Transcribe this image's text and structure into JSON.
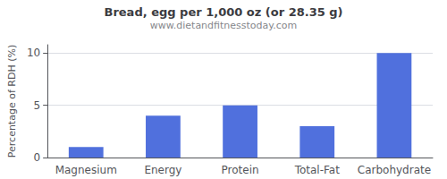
{
  "chart_data": {
    "type": "bar",
    "title": "Bread, egg per 1,000 oz (or 28.35 g)",
    "subtitle": "www.dietandfitnesstoday.com",
    "categories": [
      "Magnesium",
      "Energy",
      "Protein",
      "Total-Fat",
      "Carbohydrate"
    ],
    "values": [
      1.0,
      4.0,
      5.0,
      3.0,
      10.0
    ],
    "ylabel": "Percentage of RDH (%)",
    "ylim": [
      0,
      10.8
    ],
    "yticks": [
      0,
      5,
      10
    ],
    "grid": true
  }
}
